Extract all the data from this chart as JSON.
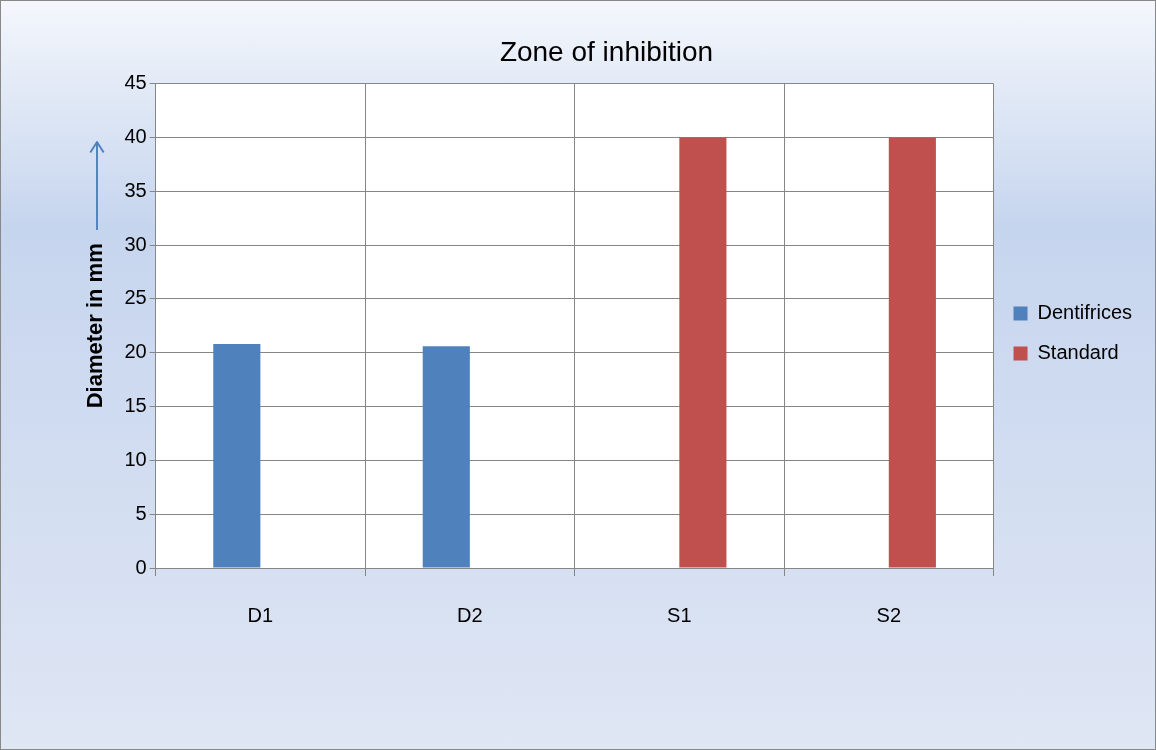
{
  "chart_data": {
    "type": "bar",
    "title": "Zone of inhibition",
    "ylabel": "Diameter in mm",
    "categories": [
      "D1",
      "D2",
      "S1",
      "S2"
    ],
    "series": [
      {
        "name": "Dentifrices",
        "color": "#4f81bd",
        "values": [
          20.8,
          20.6,
          0,
          0
        ]
      },
      {
        "name": "Standard",
        "color": "#c0504d",
        "values": [
          0,
          0,
          40,
          40
        ]
      }
    ],
    "ylim": [
      0,
      45
    ],
    "yticks": [
      0,
      5,
      10,
      15,
      20,
      25,
      30,
      35,
      40,
      45
    ],
    "grid": true,
    "legend": "right"
  }
}
